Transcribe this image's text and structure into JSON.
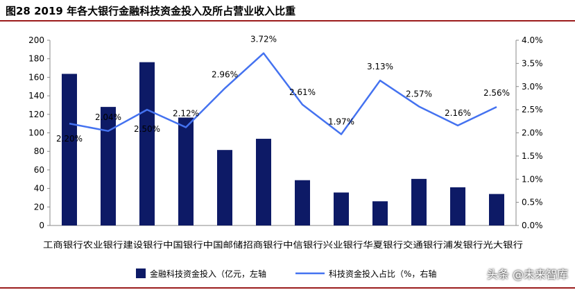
{
  "title": "图28  2019 年各大银行金融科技资金投入及所占营业收入比重",
  "watermark": "头条 @未来智库",
  "colors": {
    "bar": "#0d1a66",
    "line": "#4472f0",
    "rule": "#9b1b1b"
  },
  "chart_data": {
    "type": "bar+line",
    "categories": [
      "工商银行",
      "农业银行",
      "建设银行",
      "中国银行",
      "中国邮储",
      "招商银行",
      "中信银行",
      "兴业银行",
      "华夏银行",
      "交通银行",
      "浦发银行",
      "光大银行"
    ],
    "category_axis_text": "工商银行农业银行建设银行中国银行中国邮储招商银行中信银行兴业银行华夏银行交通银行浦发银行光大银行",
    "series": [
      {
        "name": "金融科技资金投入（亿元，左轴",
        "axis": "left",
        "type": "bar",
        "values": [
          163.7,
          128,
          176.3,
          116.5,
          81.5,
          93.6,
          48.9,
          35.6,
          26.1,
          50.3,
          41.2,
          34
        ]
      },
      {
        "name": "科技资金投入占比（%，右轴",
        "axis": "right",
        "type": "line",
        "values": [
          2.2,
          2.04,
          2.5,
          2.12,
          2.96,
          3.72,
          2.61,
          1.97,
          3.13,
          2.57,
          2.16,
          2.56
        ],
        "labels": [
          "2.20%",
          "2.04%",
          "2.50%",
          "2.12%",
          "2.96%",
          "3.72%",
          "2.61%",
          "1.97%",
          "3.13%",
          "2.57%",
          "2.16%",
          "2.56%"
        ]
      }
    ],
    "y_left": {
      "min": 0,
      "max": 200,
      "ticks": [
        "0",
        "20",
        "40",
        "60",
        "80",
        "100",
        "120",
        "140",
        "160",
        "180",
        "200"
      ]
    },
    "y_right": {
      "min": 0,
      "max": 4,
      "ticks": [
        "0.0%",
        "0.5%",
        "1.0%",
        "1.5%",
        "2.0%",
        "2.5%",
        "3.0%",
        "3.5%",
        "4.0%"
      ]
    },
    "grid": false,
    "legend_position": "bottom"
  }
}
